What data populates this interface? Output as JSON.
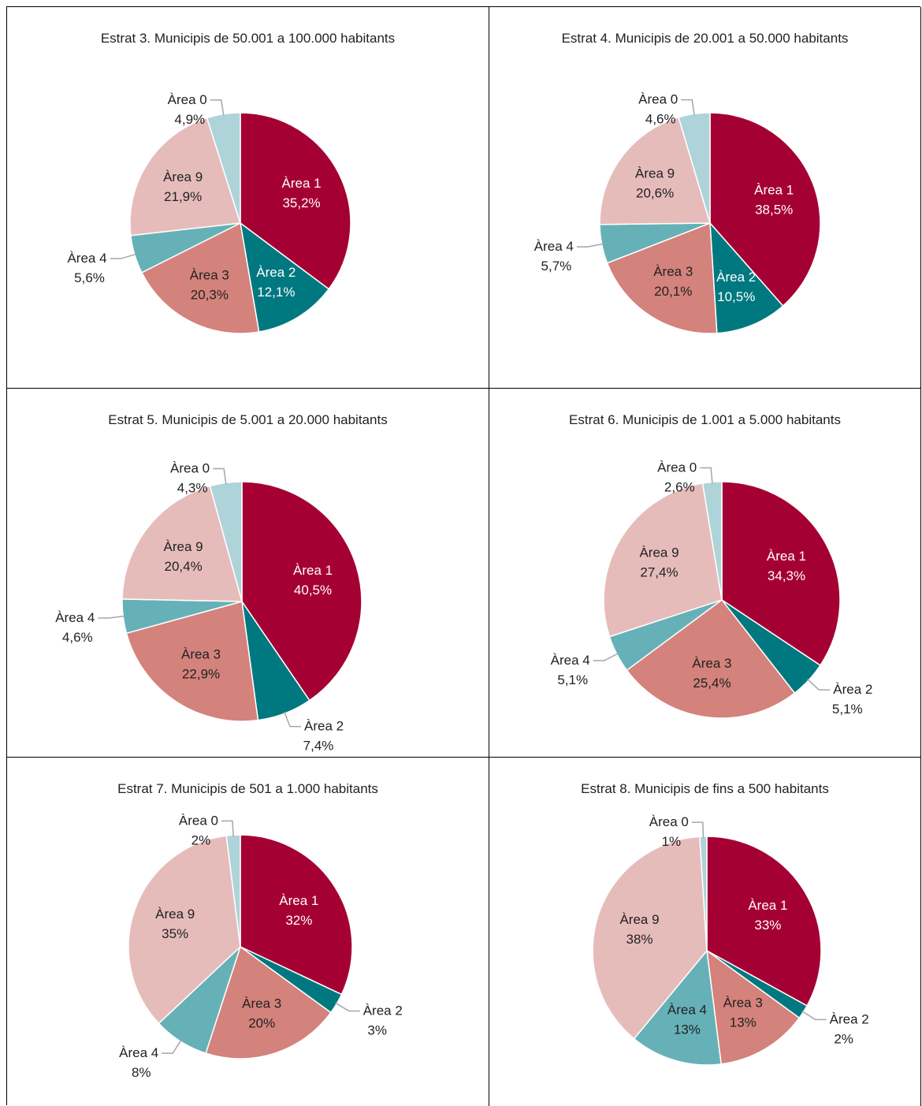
{
  "chart_data": [
    {
      "type": "pie",
      "title": "Estrat 3. Municipis de 50.001 a 100.000 habitants",
      "categories": [
        "Àrea 1",
        "Àrea 2",
        "Àrea 3",
        "Àrea 4",
        "Àrea 9",
        "Àrea 0"
      ],
      "values": [
        35.2,
        12.1,
        20.3,
        5.6,
        21.9,
        4.9
      ],
      "value_labels": [
        "35,2%",
        "12,1%",
        "20,3%",
        "5,6%",
        "21,9%",
        "4,9%"
      ],
      "colors": [
        "#a50034",
        "#00787f",
        "#d4827c",
        "#66b1b8",
        "#e6bcbb",
        "#aed4d9"
      ]
    },
    {
      "type": "pie",
      "title": "Estrat 4. Municipis de 20.001 a 50.000 habitants",
      "categories": [
        "Àrea 1",
        "Àrea 2",
        "Àrea 3",
        "Àrea 4",
        "Àrea 9",
        "Àrea 0"
      ],
      "values": [
        38.5,
        10.5,
        20.1,
        5.7,
        20.6,
        4.6
      ],
      "value_labels": [
        "38,5%",
        "10,5%",
        "20,1%",
        "5,7%",
        "20,6%",
        "4,6%"
      ],
      "colors": [
        "#a50034",
        "#00787f",
        "#d4827c",
        "#66b1b8",
        "#e6bcbb",
        "#aed4d9"
      ]
    },
    {
      "type": "pie",
      "title": "Estrat 5. Municipis de 5.001 a 20.000 habitants",
      "categories": [
        "Àrea 1",
        "Àrea 2",
        "Àrea 3",
        "Àrea 4",
        "Àrea 9",
        "Àrea 0"
      ],
      "values": [
        40.5,
        7.4,
        22.9,
        4.6,
        20.4,
        4.3
      ],
      "value_labels": [
        "40,5%",
        "7,4%",
        "22,9%",
        "4,6%",
        "20,4%",
        "4,3%"
      ],
      "colors": [
        "#a50034",
        "#00787f",
        "#d4827c",
        "#66b1b8",
        "#e6bcbb",
        "#aed4d9"
      ]
    },
    {
      "type": "pie",
      "title": "Estrat 6. Municipis de 1.001 a 5.000 habitants",
      "categories": [
        "Àrea 1",
        "Àrea 2",
        "Àrea 3",
        "Àrea 4",
        "Àrea 9",
        "Àrea 0"
      ],
      "values": [
        34.3,
        5.1,
        25.4,
        5.1,
        27.4,
        2.6
      ],
      "value_labels": [
        "34,3%",
        "5,1%",
        "25,4%",
        "5,1%",
        "27,4%",
        "2,6%"
      ],
      "colors": [
        "#a50034",
        "#00787f",
        "#d4827c",
        "#66b1b8",
        "#e6bcbb",
        "#aed4d9"
      ]
    },
    {
      "type": "pie",
      "title": "Estrat 7. Municipis de 501 a 1.000 habitants",
      "categories": [
        "Àrea 1",
        "Àrea 2",
        "Àrea 3",
        "Àrea 4",
        "Àrea 9",
        "Àrea 0"
      ],
      "values": [
        32,
        3,
        20,
        8,
        35,
        2
      ],
      "value_labels": [
        "32%",
        "3%",
        "20%",
        "8%",
        "35%",
        "2%"
      ],
      "colors": [
        "#a50034",
        "#00787f",
        "#d4827c",
        "#66b1b8",
        "#e6bcbb",
        "#aed4d9"
      ]
    },
    {
      "type": "pie",
      "title": "Estrat 8. Municipis de fins a 500 habitants",
      "categories": [
        "Àrea 1",
        "Àrea 2",
        "Àrea 3",
        "Àrea 4",
        "Àrea 9",
        "Àrea 0"
      ],
      "values": [
        33,
        2,
        13,
        13,
        38,
        1
      ],
      "value_labels": [
        "33%",
        "2%",
        "13%",
        "13%",
        "38%",
        "1%"
      ],
      "colors": [
        "#a50034",
        "#00787f",
        "#d4827c",
        "#66b1b8",
        "#e6bcbb",
        "#aed4d9"
      ]
    }
  ]
}
